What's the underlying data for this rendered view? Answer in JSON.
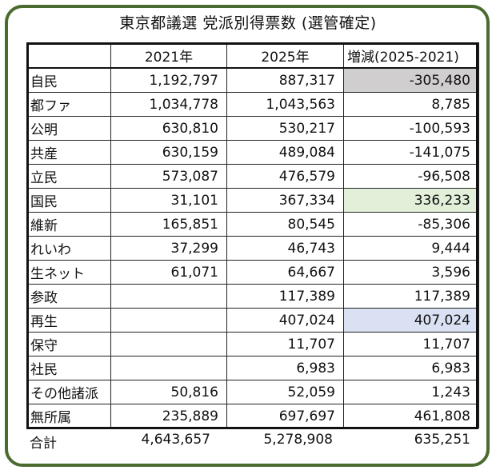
{
  "title": "東京都議選 党派別得票数 (選管確定)",
  "colors": {
    "frame": "#4a6b2f",
    "highlight_negative": "#d0cece",
    "highlight_green": "#e2efd9",
    "highlight_blue": "#d9e1f2"
  },
  "table": {
    "headers": [
      "",
      "2021年",
      "2025年",
      "増減(2025-2021)"
    ],
    "rows": [
      {
        "party": "自民",
        "y2021": "1,192,797",
        "y2025": "887,317",
        "diff": "-305,480",
        "highlight": "#d0cece"
      },
      {
        "party": "都ファ",
        "y2021": "1,034,778",
        "y2025": "1,043,563",
        "diff": "8,785",
        "highlight": ""
      },
      {
        "party": "公明",
        "y2021": "630,810",
        "y2025": "530,217",
        "diff": "-100,593",
        "highlight": ""
      },
      {
        "party": "共産",
        "y2021": "630,159",
        "y2025": "489,084",
        "diff": "-141,075",
        "highlight": ""
      },
      {
        "party": "立民",
        "y2021": "573,087",
        "y2025": "476,579",
        "diff": "-96,508",
        "highlight": ""
      },
      {
        "party": "国民",
        "y2021": "31,101",
        "y2025": "367,334",
        "diff": "336,233",
        "highlight": "#e2efd9"
      },
      {
        "party": "維新",
        "y2021": "165,851",
        "y2025": "80,545",
        "diff": "-85,306",
        "highlight": ""
      },
      {
        "party": "れいわ",
        "y2021": "37,299",
        "y2025": "46,743",
        "diff": "9,444",
        "highlight": ""
      },
      {
        "party": "生ネット",
        "y2021": "61,071",
        "y2025": "64,667",
        "diff": "3,596",
        "highlight": ""
      },
      {
        "party": "参政",
        "y2021": "",
        "y2025": "117,389",
        "diff": "117,389",
        "highlight": ""
      },
      {
        "party": "再生",
        "y2021": "",
        "y2025": "407,024",
        "diff": "407,024",
        "highlight": "#d9e1f2"
      },
      {
        "party": "保守",
        "y2021": "",
        "y2025": "11,707",
        "diff": "11,707",
        "highlight": ""
      },
      {
        "party": "社民",
        "y2021": "",
        "y2025": "6,983",
        "diff": "6,983",
        "highlight": ""
      },
      {
        "party": "その他諸派",
        "y2021": "50,816",
        "y2025": "52,059",
        "diff": "1,243",
        "highlight": ""
      },
      {
        "party": "無所属",
        "y2021": "235,889",
        "y2025": "697,697",
        "diff": "461,808",
        "highlight": ""
      }
    ]
  },
  "total": {
    "label": "合計",
    "y2021": "4,643,657",
    "y2025": "5,278,908",
    "diff": "635,251"
  }
}
